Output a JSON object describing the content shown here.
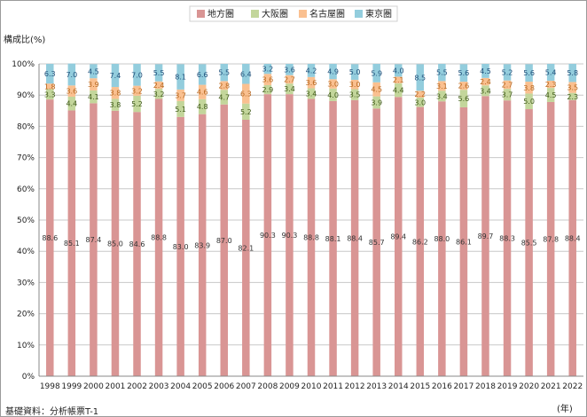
{
  "chart_data": {
    "type": "bar",
    "stacked": true,
    "ylabel": "構成比(%)",
    "xunit": "(年)",
    "source": "基礎資料：分析帳票T-1",
    "ylim": [
      0,
      100
    ],
    "yticks": [
      "0%",
      "10%",
      "20%",
      "30%",
      "40%",
      "50%",
      "60%",
      "70%",
      "80%",
      "90%",
      "100%"
    ],
    "grid": true,
    "legend_position": "top-center",
    "categories": [
      "1998",
      "1999",
      "2000",
      "2001",
      "2002",
      "2003",
      "2004",
      "2005",
      "2006",
      "2007",
      "2008",
      "2009",
      "2010",
      "2011",
      "2012",
      "2013",
      "2014",
      "2015",
      "2016",
      "2017",
      "2018",
      "2019",
      "2020",
      "2021",
      "2022"
    ],
    "series": [
      {
        "name": "地方圏",
        "color": "#d99594",
        "values": [
          88.6,
          85.1,
          87.4,
          85.0,
          84.6,
          88.8,
          83.0,
          83.9,
          87.0,
          82.1,
          90.3,
          90.3,
          88.8,
          88.1,
          88.4,
          85.7,
          89.4,
          86.2,
          88.0,
          86.1,
          89.7,
          88.3,
          85.5,
          87.8,
          88.4
        ],
        "labels": [
          "88.6",
          "85.1",
          "87.4",
          "85.0",
          "84.6",
          "88.8",
          "83.0",
          "83.9",
          "87.0",
          "82.1",
          "90.3",
          "90.3",
          "88.8",
          "88.1",
          "88.4",
          "85.7",
          "89.4",
          "86.2",
          "88.0",
          "86.1",
          "89.7",
          "88.3",
          "85.5",
          "87.8",
          "88.4"
        ]
      },
      {
        "name": "大阪圏",
        "color": "#c3d69b",
        "values": [
          3.3,
          4.4,
          4.1,
          3.8,
          5.2,
          3.2,
          5.1,
          4.8,
          4.7,
          5.2,
          2.9,
          3.4,
          3.4,
          4.0,
          3.5,
          3.9,
          4.4,
          3.0,
          3.4,
          5.6,
          3.4,
          3.7,
          5.0,
          4.5,
          2.3
        ],
        "labels": [
          "3.3",
          "4.4",
          "4.1",
          "3.8",
          "5.2",
          "3.2",
          "5.1",
          "4.8",
          "4.7",
          "5.2",
          "2.9",
          "3.4",
          "3.4",
          "4.0",
          "3.5",
          "3.9",
          "4.4",
          "3.0",
          "3.4",
          "5.6",
          "3.4",
          "3.7",
          "5.0",
          "4.5",
          "2.3"
        ]
      },
      {
        "name": "名古屋圏",
        "color": "#fac090",
        "values": [
          1.8,
          3.6,
          3.9,
          3.8,
          3.2,
          2.4,
          3.7,
          4.6,
          2.8,
          6.3,
          3.6,
          2.7,
          3.6,
          3.0,
          3.0,
          4.5,
          2.1,
          2.2,
          3.1,
          2.6,
          2.4,
          2.7,
          3.8,
          2.3,
          3.5
        ],
        "labels": [
          "1.8",
          "3.6",
          "3.9",
          "3.8",
          "3.2",
          "2.4",
          "3.7",
          "4.6",
          "2.8",
          "6.3",
          "3.6",
          "2.7",
          "3.6",
          "3.0",
          "3.0",
          "4.5",
          "2.1",
          "2.2",
          "3.1",
          "2.6",
          "2.4",
          "2.7",
          "3.8",
          "2.3",
          "3.5"
        ]
      },
      {
        "name": "東京圏",
        "color": "#93cddd",
        "values": [
          6.3,
          7.0,
          4.5,
          7.4,
          7.0,
          5.5,
          8.1,
          6.6,
          5.5,
          6.4,
          3.2,
          3.6,
          4.2,
          4.9,
          5.0,
          5.9,
          4.0,
          8.5,
          5.5,
          5.6,
          4.5,
          5.2,
          5.6,
          5.4,
          5.8
        ],
        "labels": [
          "6.3",
          "7.0",
          "4.5",
          "7.4",
          "7.0",
          "5.5",
          "8.1",
          "6.6",
          "5.5",
          "6.4",
          "3.2",
          "3.6",
          "4.2",
          "4.9",
          "5.0",
          "5.9",
          "4.0",
          "8.5",
          "5.5",
          "5.6",
          "4.5",
          "5.2",
          "5.6",
          "5.4",
          "5.8"
        ]
      }
    ]
  }
}
